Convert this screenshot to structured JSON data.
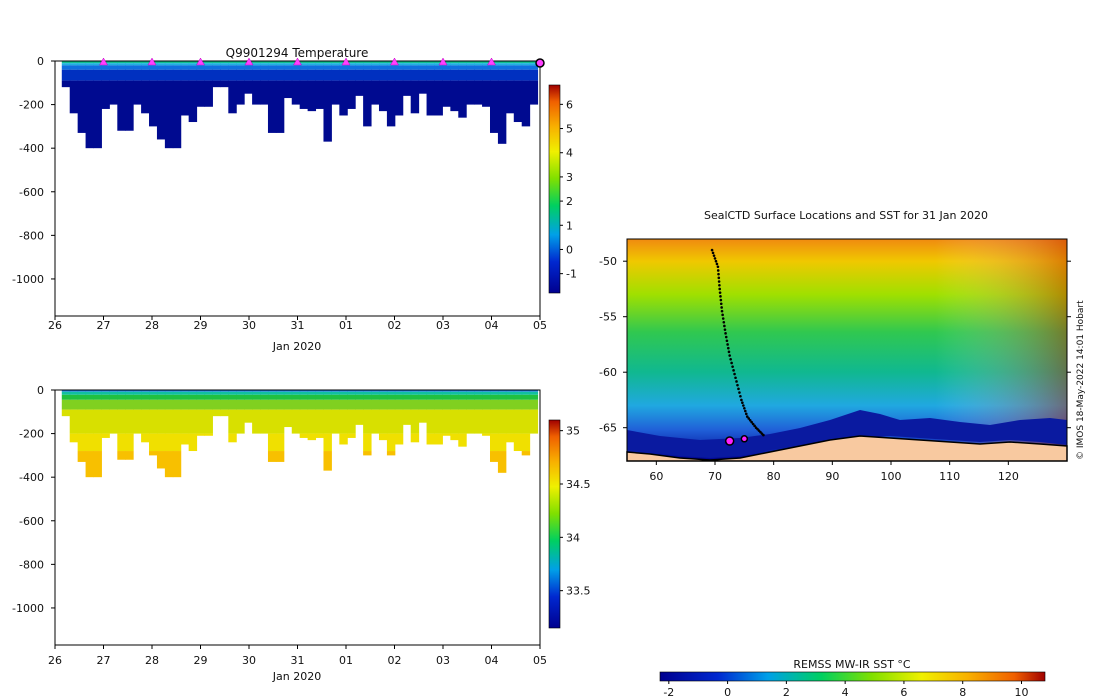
{
  "chart_data": [
    {
      "type": "heatmap",
      "title": "Q9901294  Temperature",
      "xlabel": "Jan 2020",
      "x_tick_labels": [
        "26",
        "27",
        "28",
        "29",
        "30",
        "31",
        "01",
        "02",
        "03",
        "04",
        "05"
      ],
      "y_tick_labels": [
        "0",
        "-200",
        "-400",
        "-600",
        "-800",
        "-1000"
      ],
      "y_ticks": [
        0,
        -200,
        -400,
        -600,
        -800,
        -1000
      ],
      "ylim": [
        -1170,
        0
      ],
      "xlim": [
        0,
        10
      ],
      "colorbar": {
        "ticks": [
          -1,
          0,
          1,
          2,
          3,
          4,
          5,
          6
        ],
        "labels": [
          "-1",
          "0",
          "1",
          "2",
          "3",
          "4",
          "5",
          "6"
        ],
        "range": [
          -1.8,
          6.8
        ]
      },
      "profile_marker_days": [
        1,
        2,
        3,
        4,
        5,
        6,
        7,
        8,
        9
      ],
      "surface_value": 2.5,
      "deep_value": -1.6
    },
    {
      "type": "heatmap",
      "title": "",
      "xlabel": "Jan 2020",
      "x_tick_labels": [
        "26",
        "27",
        "28",
        "29",
        "30",
        "31",
        "01",
        "02",
        "03",
        "04",
        "05"
      ],
      "y_tick_labels": [
        "0",
        "-200",
        "-400",
        "-600",
        "-800",
        "-1000"
      ],
      "y_ticks": [
        0,
        -200,
        -400,
        -600,
        -800,
        -1000
      ],
      "ylim": [
        -1170,
        0
      ],
      "xlim": [
        0,
        10
      ],
      "colorbar": {
        "ticks": [
          33.5,
          34,
          34.5,
          35
        ],
        "labels": [
          "33.5",
          "34",
          "34.5",
          "35"
        ],
        "range": [
          33.15,
          35.1
        ]
      },
      "surface_value": 33.8,
      "deep_value": 34.65
    },
    {
      "type": "heatmap",
      "title": "SealCTD Surface Locations and SST for 31 Jan 2020",
      "x_tick_labels": [
        "60",
        "70",
        "80",
        "90",
        "100",
        "110",
        "120"
      ],
      "x_ticks": [
        60,
        70,
        80,
        90,
        100,
        110,
        120
      ],
      "y_tick_labels": [
        "-50",
        "-55",
        "-60",
        "-65"
      ],
      "y_ticks": [
        -50,
        -55,
        -60,
        -65
      ],
      "xlim": [
        55,
        130
      ],
      "ylim": [
        -68,
        -48
      ],
      "track": [
        [
          69.5,
          -49.0
        ],
        [
          70.5,
          -50.5
        ],
        [
          70.8,
          -52.5
        ],
        [
          71.2,
          -54.5
        ],
        [
          71.8,
          -56.5
        ],
        [
          72.5,
          -58.5
        ],
        [
          73.5,
          -60.5
        ],
        [
          74.5,
          -62.5
        ],
        [
          75.5,
          -64.0
        ],
        [
          77.0,
          -65.0
        ],
        [
          78.5,
          -65.8
        ]
      ],
      "highlight_points": [
        [
          72.5,
          -66.2
        ],
        [
          75.0,
          -66.0
        ]
      ],
      "colorbar": {
        "label": "REMSS MW-IR SST °C",
        "ticks": [
          -2,
          0,
          2,
          4,
          6,
          8,
          10
        ],
        "labels": [
          "-2",
          "0",
          "2",
          "4",
          "6",
          "8",
          "10"
        ],
        "range": [
          -2.3,
          10.8
        ]
      },
      "credit": "© IMOS 18-May-2022 14:01 Hobart"
    }
  ]
}
